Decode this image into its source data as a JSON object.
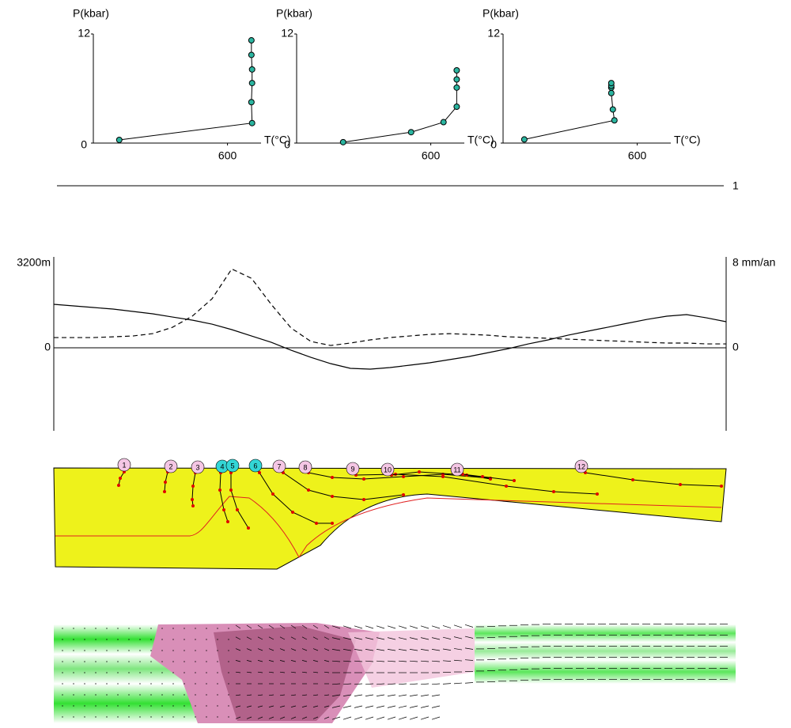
{
  "chart_data": [
    {
      "type": "line",
      "y_label": "P(kbar)",
      "x_label": "T(°C)",
      "color": "#2bb5a0",
      "x": [
        116,
        710,
        707,
        710,
        710,
        707,
        707
      ],
      "values": [
        0.35,
        2.2,
        4.5,
        6.6,
        8.1,
        9.7,
        11.3
      ],
      "xlim": [
        0,
        750
      ],
      "ylim": [
        0,
        12
      ],
      "xticks": [
        600
      ],
      "yticks": [
        0,
        12
      ]
    },
    {
      "type": "line",
      "y_label": "P(kbar)",
      "x_label": "T(°C)",
      "color": "#2bb5a0",
      "x": [
        208,
        512,
        657,
        716,
        716,
        716,
        716
      ],
      "values": [
        0.1,
        1.2,
        2.3,
        4.0,
        6.1,
        7.0,
        8.0
      ],
      "xlim": [
        0,
        750
      ],
      "ylim": [
        0,
        12
      ],
      "xticks": [
        600
      ],
      "yticks": [
        0,
        12
      ]
    },
    {
      "type": "line",
      "y_label": "P(kbar)",
      "x_label": "T(°C)",
      "color": "#2bb5a0",
      "x": [
        95,
        498,
        491,
        484,
        484,
        484,
        484
      ],
      "values": [
        0.4,
        2.5,
        3.7,
        5.5,
        6.1,
        6.3,
        6.6
      ],
      "xlim": [
        0,
        750
      ],
      "ylim": [
        0,
        12
      ],
      "xticks": [
        600
      ],
      "yticks": [
        0,
        12
      ]
    },
    {
      "type": "profile",
      "ylim": [
        -3140,
        3440
      ],
      "yticks": [
        {
          "value": 3200,
          "label": "3200m"
        },
        0
      ],
      "y2lim": [
        -7.85,
        8.6
      ],
      "y2ticks": [
        {
          "value": 8,
          "label": "8 mm/an"
        },
        0
      ],
      "series": [
        {
          "color": "#000000",
          "dashed": false,
          "values": [
            1645,
            1585,
            1525,
            1465,
            1376,
            1286,
            1166,
            1047,
            897,
            688,
            448,
            209,
            -90,
            -359,
            -598,
            -777,
            -807,
            -747,
            -658,
            -568,
            -448,
            -329,
            -179,
            -30,
            149,
            299,
            478,
            628,
            777,
            927,
            1076,
            1196,
            1256,
            1136,
            987
          ]
        },
        {
          "color": "#000000",
          "dashed": true,
          "axis": "y2",
          "values": [
            0.97,
            0.97,
            0.97,
            1.04,
            1.12,
            1.34,
            1.94,
            2.99,
            4.63,
            7.46,
            6.57,
            4.1,
            1.87,
            0.6,
            0.22,
            0.45,
            0.75,
            0.97,
            1.12,
            1.27,
            1.34,
            1.27,
            1.19,
            1.04,
            0.97,
            0.9,
            0.82,
            0.75,
            0.67,
            0.6,
            0.52,
            0.45,
            0.45,
            0.37,
            0.37
          ]
        }
      ]
    }
  ],
  "panel_label": "1",
  "section": {
    "fill": "#eef21b",
    "markers": [
      {
        "label": "1",
        "color": "#f4c6e4"
      },
      {
        "label": "2",
        "color": "#f4c6e4"
      },
      {
        "label": "3",
        "color": "#f4c6e4"
      },
      {
        "label": "4",
        "color": "#33d6d6"
      },
      {
        "label": "5",
        "color": "#33d6d6"
      },
      {
        "label": "6",
        "color": "#33d6d6"
      },
      {
        "label": "7",
        "color": "#f4c6e4"
      },
      {
        "label": "8",
        "color": "#f4c6e4"
      },
      {
        "label": "9",
        "color": "#f4c6e4"
      },
      {
        "label": "10",
        "color": "#f4c6e4"
      },
      {
        "label": "11",
        "color": "#f4c6e4"
      },
      {
        "label": "12",
        "color": "#f4c6e4"
      }
    ]
  }
}
